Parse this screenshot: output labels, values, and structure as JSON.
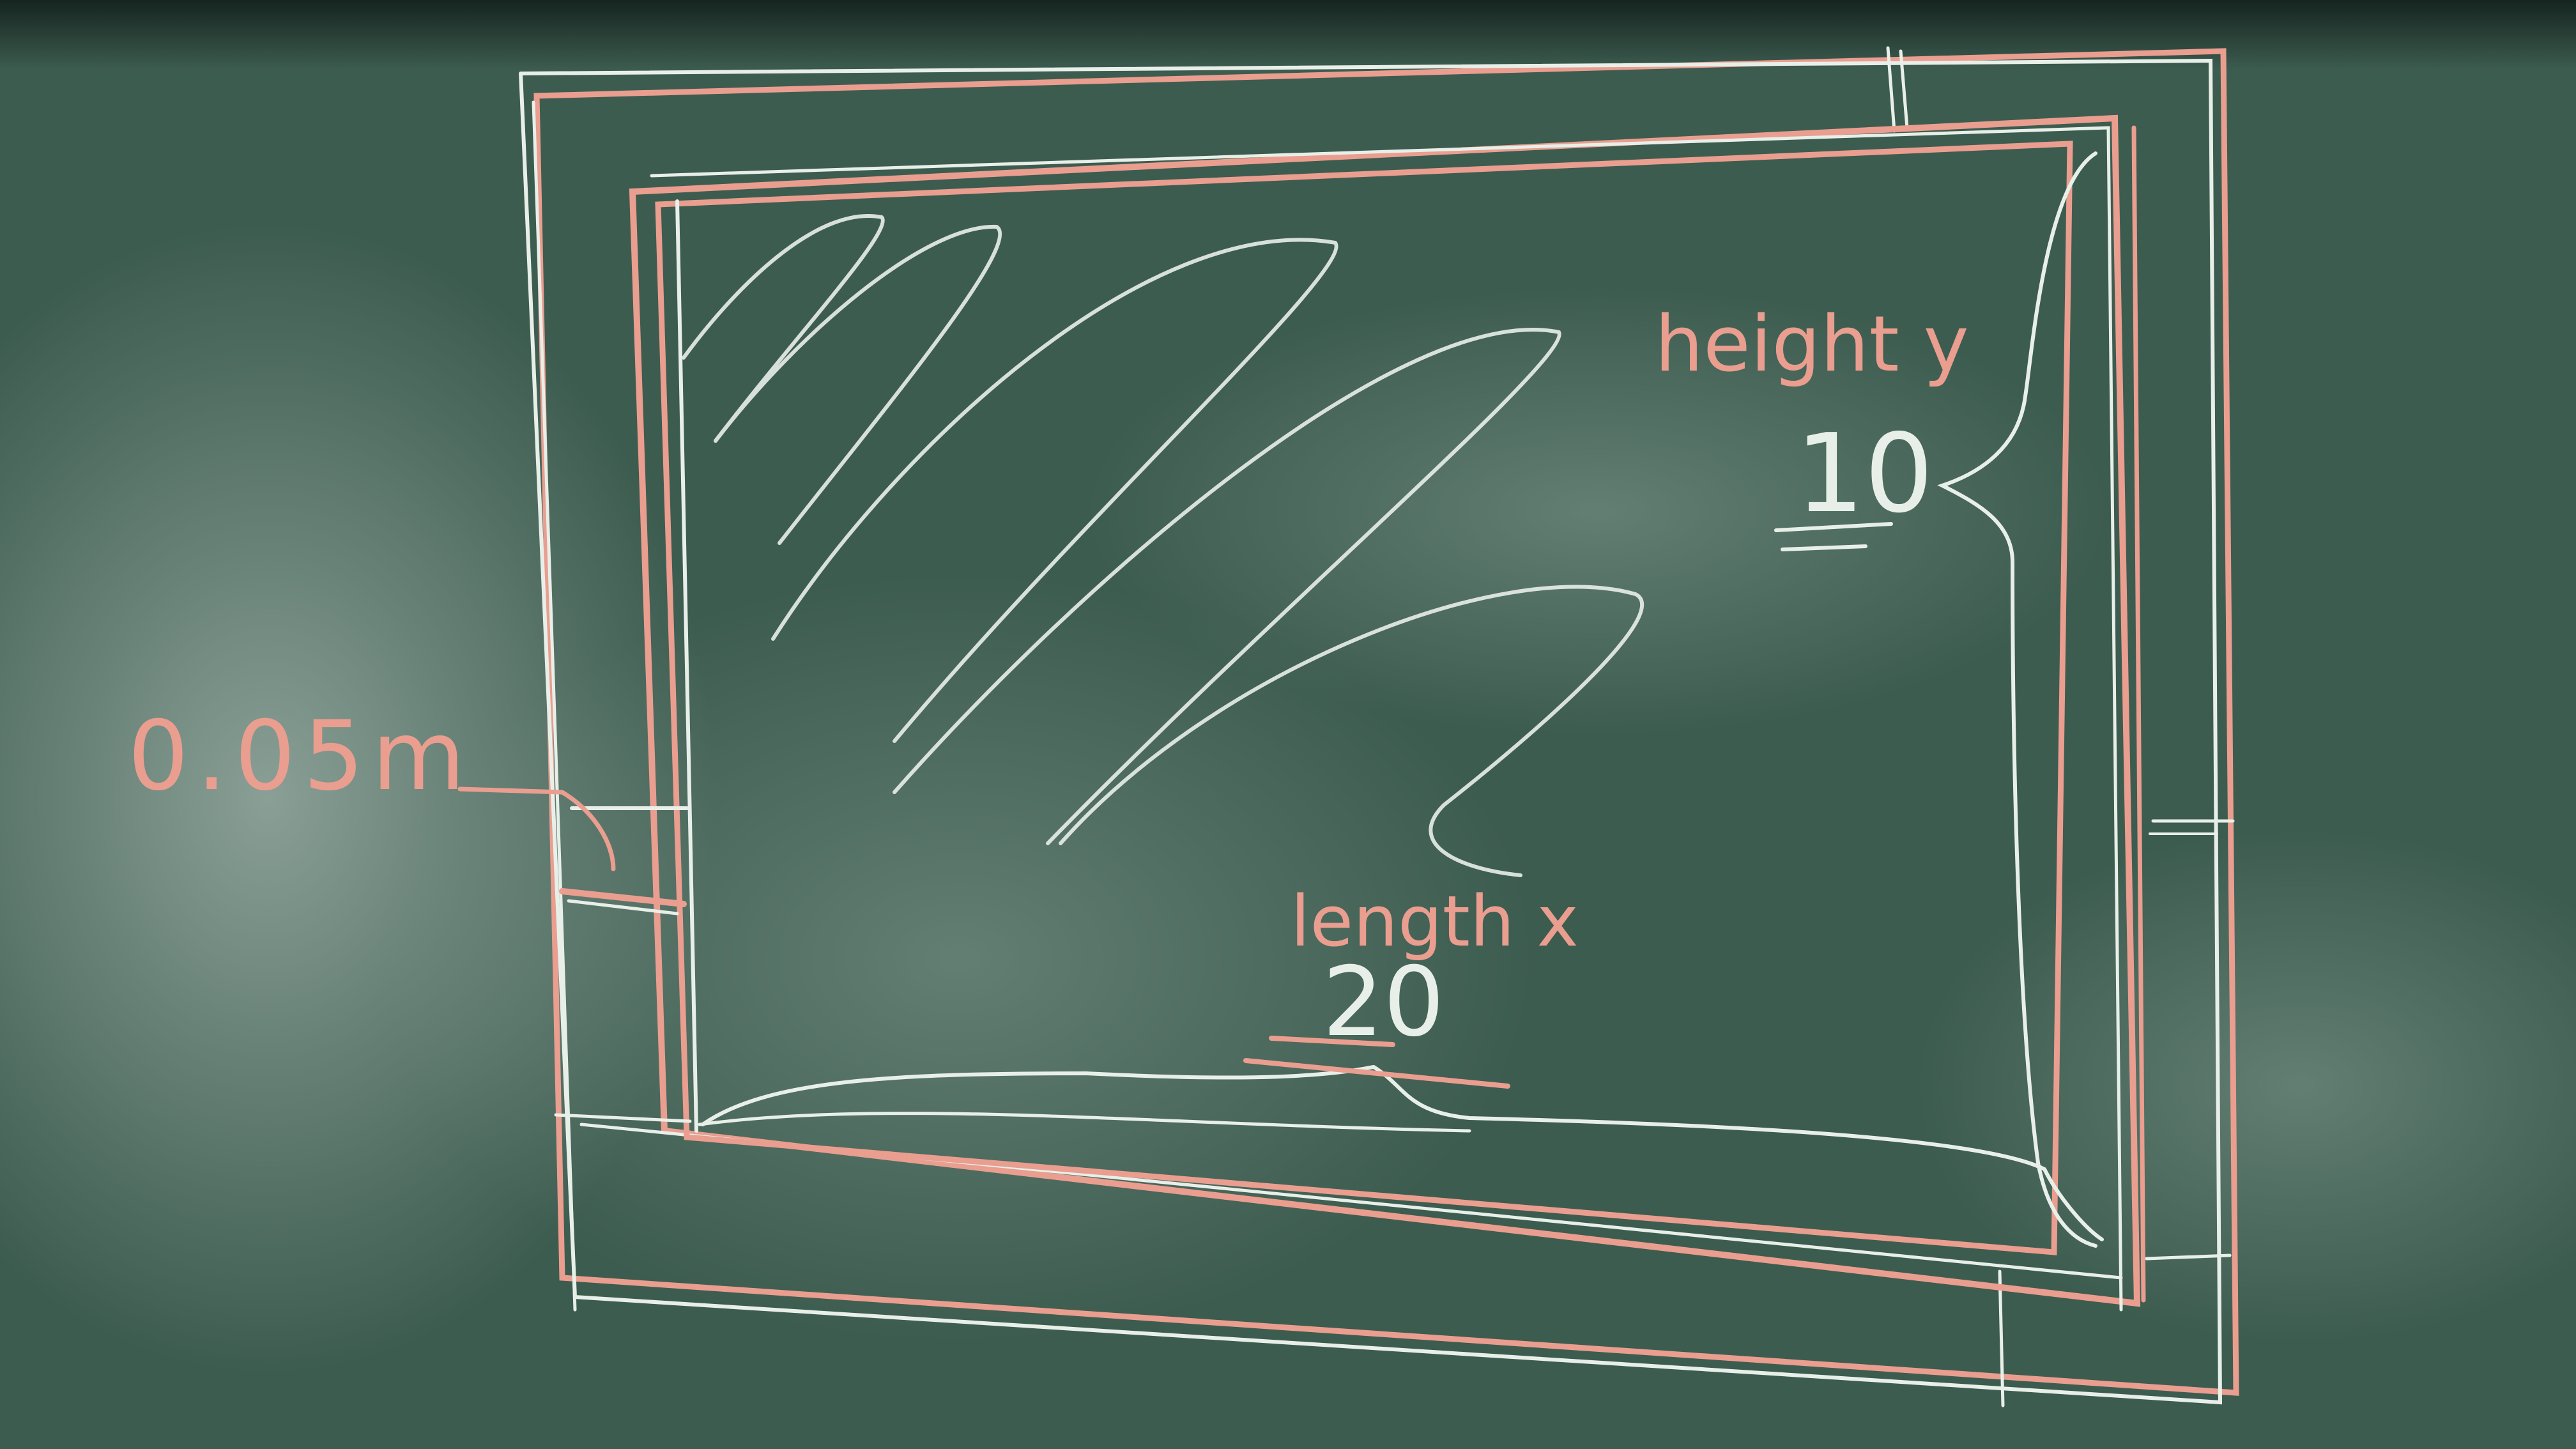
{
  "labels": {
    "thickness": "0.05m",
    "height_label": "height y",
    "height_value": "10",
    "length_label": "length x",
    "length_value": "20"
  },
  "colors": {
    "board": "#3b5a4e",
    "pink_chalk": "#e99e8f",
    "white_chalk": "#e8efe9"
  }
}
